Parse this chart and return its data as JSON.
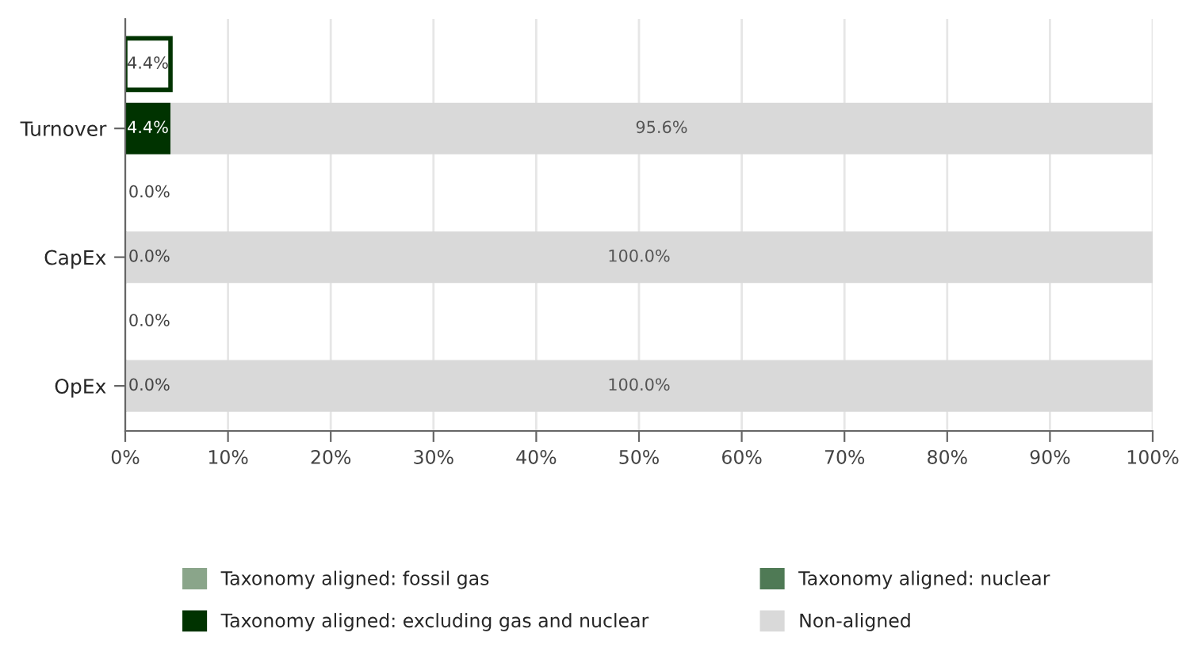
{
  "chart_data": {
    "type": "bar",
    "orientation": "horizontal",
    "stacked": true,
    "categories": [
      null,
      "Turnover",
      null,
      "CapEx",
      null,
      "OpEx"
    ],
    "series": [
      {
        "color": "#ffffff",
        "values": [
          4.4,
          null,
          0.0,
          null,
          0.0,
          null
        ],
        "value_labels": [
          "4.4%",
          null,
          "0.0%",
          null,
          "0.0%",
          null
        ]
      },
      {
        "name": "Taxonomy aligned: fossil gas",
        "color": "#8aa58a",
        "values": [
          null,
          null,
          null,
          null,
          null,
          null
        ]
      },
      {
        "name": "Taxonomy aligned: nuclear",
        "color": "#4f7a55",
        "values": [
          null,
          null,
          null,
          null,
          null,
          null
        ]
      },
      {
        "name": "Taxonomy aligned: excluding gas and nuclear",
        "color": "#003300",
        "values": [
          null,
          4.4,
          null,
          0.0,
          null,
          0.0
        ],
        "value_labels": [
          null,
          "4.4%",
          null,
          "0.0%",
          null,
          "0.0%"
        ]
      },
      {
        "name": "Non-aligned",
        "color": "#d9d9d9",
        "values": [
          null,
          95.6,
          null,
          100.0,
          null,
          100.0
        ],
        "value_labels": [
          null,
          "95.6%",
          null,
          "100.0%",
          null,
          "100.0%"
        ]
      }
    ],
    "xlim": [
      0,
      100
    ],
    "xticks": [
      {
        "value": 0,
        "label": "0%"
      },
      {
        "value": 10,
        "label": "10%"
      },
      {
        "value": 20,
        "label": "20%"
      },
      {
        "value": 30,
        "label": "30%"
      },
      {
        "value": 40,
        "label": "40%"
      },
      {
        "value": 50,
        "label": "50%"
      },
      {
        "value": 60,
        "label": "60%"
      },
      {
        "value": 70,
        "label": "70%"
      },
      {
        "value": 80,
        "label": "80%"
      },
      {
        "value": 90,
        "label": "90%"
      },
      {
        "value": 100,
        "label": "100%"
      }
    ],
    "grid": "x",
    "legend": "bottom"
  }
}
